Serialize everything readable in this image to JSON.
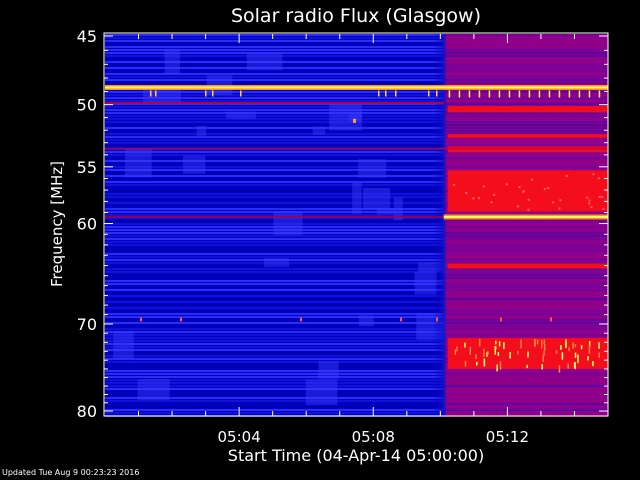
{
  "chart_data": {
    "type": "heatmap",
    "title": "Solar radio Flux (Glasgow)",
    "ylabel": "Frequency [MHz]",
    "xlabel": "Start Time (04-Apr-14 05:00:00)",
    "x_ticks": [
      {
        "value": 4,
        "label": "05:04"
      },
      {
        "value": 8,
        "label": "05:08"
      },
      {
        "value": 12,
        "label": "05:12"
      }
    ],
    "y_ticks": [
      {
        "value": 45,
        "label": "45"
      },
      {
        "value": 50,
        "label": "50"
      },
      {
        "value": 55,
        "label": "55"
      },
      {
        "value": 60,
        "label": "60"
      },
      {
        "value": 70,
        "label": "70"
      },
      {
        "value": 80,
        "label": "80"
      }
    ],
    "xlim": [
      0,
      15
    ],
    "ylim": [
      44,
      80
    ],
    "y_scale": "log",
    "transition_time": 10.1,
    "colorscale": [
      "#0000c8",
      "#3c3cff",
      "#8000a0",
      "#ff1010",
      "#ffff60"
    ],
    "bright_bands_mhz": [
      48.7,
      59.4
    ],
    "red_bands_mhz": [
      {
        "from": 50.1,
        "to": 50.6
      },
      {
        "from": 52.3,
        "to": 52.6
      },
      {
        "from": 53.3,
        "to": 53.8
      },
      {
        "from": 55.3,
        "to": 58.9
      },
      {
        "from": 63.8,
        "to": 64.3
      },
      {
        "from": 71.5,
        "to": 75.0
      }
    ]
  },
  "footer": "Updated Tue Aug  9 00:23:23 2016"
}
